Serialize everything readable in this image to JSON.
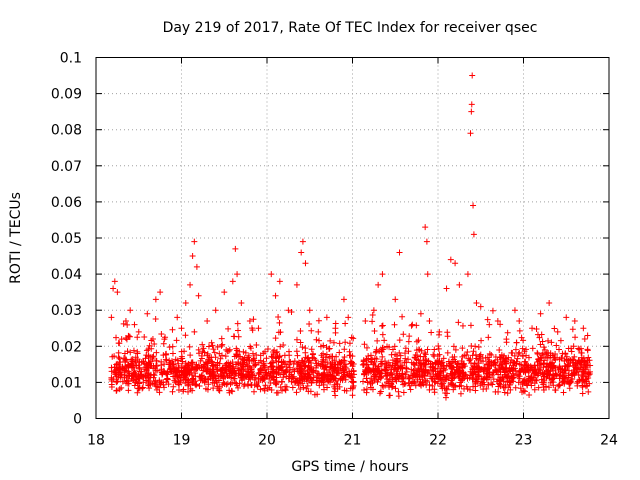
{
  "chart_data": {
    "type": "scatter",
    "title": "Day 219 of 2017, Rate Of TEC Index for receiver qsec",
    "xlabel": "GPS time / hours",
    "ylabel": "ROTI / TECUs",
    "xlim": [
      18,
      24
    ],
    "ylim": [
      0,
      0.1
    ],
    "xticks": [
      "18",
      "19",
      "20",
      "21",
      "22",
      "23",
      "24"
    ],
    "yticks": [
      "0",
      "0.01",
      "0.02",
      "0.03",
      "0.04",
      "0.05",
      "0.06",
      "0.07",
      "0.08",
      "0.09",
      "0.1"
    ],
    "grid": true,
    "marker": "+",
    "color": "#ff0000",
    "series": [
      {
        "name": "qsec ROTI",
        "note": "dense background band x 18.18-23.78 (gap 21.02-21.12), y ~0.005-0.025; representative points listed",
        "points": [
          [
            18.2,
            0.036
          ],
          [
            18.22,
            0.038
          ],
          [
            18.25,
            0.035
          ],
          [
            18.18,
            0.028
          ],
          [
            18.3,
            0.022
          ],
          [
            18.35,
            0.027
          ],
          [
            18.4,
            0.03
          ],
          [
            18.45,
            0.026
          ],
          [
            18.5,
            0.024
          ],
          [
            18.6,
            0.029
          ],
          [
            18.7,
            0.033
          ],
          [
            18.75,
            0.035
          ],
          [
            18.8,
            0.022
          ],
          [
            18.9,
            0.018
          ],
          [
            18.95,
            0.028
          ],
          [
            19.0,
            0.025
          ],
          [
            19.05,
            0.032
          ],
          [
            19.1,
            0.037
          ],
          [
            19.13,
            0.045
          ],
          [
            19.15,
            0.049
          ],
          [
            19.18,
            0.042
          ],
          [
            19.2,
            0.034
          ],
          [
            19.3,
            0.027
          ],
          [
            19.4,
            0.03
          ],
          [
            19.5,
            0.035
          ],
          [
            19.6,
            0.038
          ],
          [
            19.63,
            0.047
          ],
          [
            19.65,
            0.04
          ],
          [
            19.7,
            0.032
          ],
          [
            19.8,
            0.027
          ],
          [
            19.9,
            0.025
          ],
          [
            20.05,
            0.04
          ],
          [
            20.1,
            0.034
          ],
          [
            20.15,
            0.038
          ],
          [
            20.25,
            0.03
          ],
          [
            20.35,
            0.037
          ],
          [
            20.4,
            0.046
          ],
          [
            20.42,
            0.049
          ],
          [
            20.45,
            0.043
          ],
          [
            20.5,
            0.03
          ],
          [
            20.6,
            0.024
          ],
          [
            20.7,
            0.028
          ],
          [
            20.8,
            0.025
          ],
          [
            20.9,
            0.033
          ],
          [
            20.95,
            0.028
          ],
          [
            21.15,
            0.027
          ],
          [
            21.25,
            0.03
          ],
          [
            21.3,
            0.037
          ],
          [
            21.35,
            0.04
          ],
          [
            21.5,
            0.033
          ],
          [
            21.55,
            0.046
          ],
          [
            21.7,
            0.026
          ],
          [
            21.8,
            0.029
          ],
          [
            21.85,
            0.053
          ],
          [
            21.87,
            0.049
          ],
          [
            21.88,
            0.04
          ],
          [
            21.9,
            0.027
          ],
          [
            22.1,
            0.036
          ],
          [
            22.15,
            0.044
          ],
          [
            22.2,
            0.043
          ],
          [
            22.25,
            0.037
          ],
          [
            22.35,
            0.04
          ],
          [
            22.38,
            0.079
          ],
          [
            22.39,
            0.085
          ],
          [
            22.395,
            0.087
          ],
          [
            22.4,
            0.095
          ],
          [
            22.41,
            0.059
          ],
          [
            22.42,
            0.051
          ],
          [
            22.45,
            0.032
          ],
          [
            22.5,
            0.031
          ],
          [
            22.6,
            0.026
          ],
          [
            22.7,
            0.027
          ],
          [
            22.8,
            0.022
          ],
          [
            22.9,
            0.03
          ],
          [
            22.95,
            0.027
          ],
          [
            23.1,
            0.025
          ],
          [
            23.2,
            0.029
          ],
          [
            23.3,
            0.032
          ],
          [
            23.4,
            0.024
          ],
          [
            23.5,
            0.028
          ],
          [
            23.6,
            0.027
          ],
          [
            23.7,
            0.025
          ],
          [
            23.75,
            0.023
          ]
        ]
      }
    ]
  }
}
